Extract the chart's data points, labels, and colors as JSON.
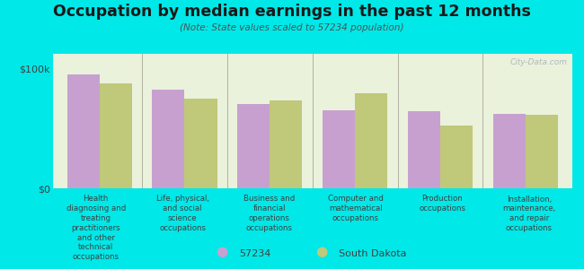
{
  "title": "Occupation by median earnings in the past 12 months",
  "subtitle": "(Note: State values scaled to 57234 population)",
  "background_color": "#00e8e8",
  "plot_bg_color": "#eaf2dc",
  "categories": [
    "Health\ndiagnosing and\ntreating\npractitioners\nand other\ntechnical\noccupations",
    "Life, physical,\nand social\nscience\noccupations",
    "Business and\nfinancial\noperations\noccupations",
    "Computer and\nmathematical\noccupations",
    "Production\noccupations",
    "Installation,\nmaintenance,\nand repair\noccupations"
  ],
  "values_57234": [
    95000,
    82000,
    70000,
    65000,
    64000,
    62000
  ],
  "values_sd": [
    87000,
    75000,
    73000,
    79000,
    52000,
    61000
  ],
  "color_57234": "#c8a0d0",
  "color_sd": "#c0c87a",
  "yticks": [
    0,
    100000
  ],
  "ytick_labels": [
    "$0",
    "$100k"
  ],
  "ylim": [
    0,
    112000
  ],
  "legend_57234": "57234",
  "legend_sd": "South Dakota",
  "bar_width": 0.38,
  "watermark": "City-Data.com"
}
